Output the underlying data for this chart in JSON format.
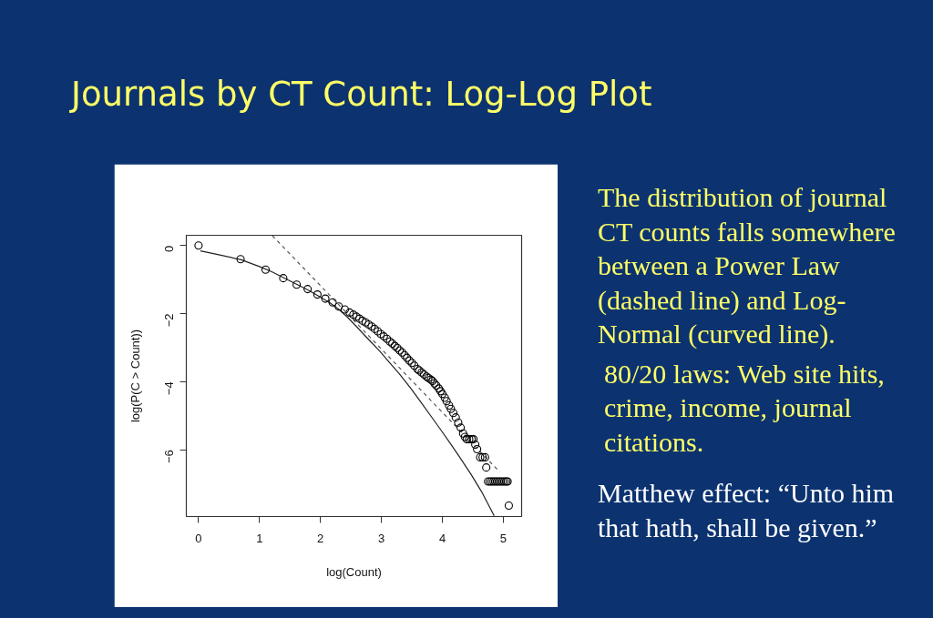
{
  "chart_data": {
    "type": "scatter",
    "title": "Journals by CT Count: Log-Log Plot",
    "xlabel": "log(Count)",
    "ylabel": "log(P(C > Count))",
    "annotations": [
      "The distribution of journal CT counts falls somewhere between a Power Law (dashed line) and Log-Normal (curved line).",
      "80/20 laws: Web site hits, crime, income, journal citations.",
      "Matthew effect: “Unto him that hath, shall be given.”"
    ],
    "xlim": [
      -0.2,
      5.3
    ],
    "ylim": [
      -7.96,
      0.3
    ],
    "xticks": [
      0,
      1,
      2,
      3,
      4,
      5
    ],
    "yticks": [
      0,
      -2,
      -4,
      -6
    ],
    "grid": false,
    "series": [
      {
        "type": "line",
        "color": "#555555",
        "line_style": "dashed",
        "x": [
          1.21,
          4.94
        ],
        "values": [
          0.29,
          -6.65
        ]
      },
      {
        "type": "line",
        "color": "#222222",
        "line_style": "solid",
        "x": [
          0.03,
          0.35,
          0.7,
          1.0,
          1.2,
          1.4,
          1.6,
          1.8,
          2.0,
          2.15,
          2.29,
          2.44,
          2.59,
          2.79,
          2.97,
          3.14,
          3.29,
          3.47,
          3.64,
          3.84,
          4.0,
          4.14,
          4.3,
          4.47,
          4.64,
          4.85
        ],
        "values": [
          -0.16,
          -0.28,
          -0.42,
          -0.62,
          -0.77,
          -0.95,
          -1.13,
          -1.31,
          -1.52,
          -1.68,
          -1.86,
          -2.1,
          -2.38,
          -2.76,
          -3.1,
          -3.45,
          -3.76,
          -4.17,
          -4.58,
          -5.08,
          -5.48,
          -5.84,
          -6.26,
          -6.72,
          -7.22,
          -7.94
        ]
      },
      {
        "color": "#000000",
        "marker": "circle",
        "x": [
          0,
          0.69,
          1.1,
          1.39,
          1.61,
          1.79,
          1.95,
          2.08,
          2.2,
          2.3,
          2.4,
          2.48,
          2.54,
          2.59,
          2.64,
          2.69,
          2.74,
          2.79,
          2.84,
          2.89,
          2.94,
          2.99,
          3.04,
          3.09,
          3.14,
          3.18,
          3.22,
          3.26,
          3.3,
          3.34,
          3.38,
          3.42,
          3.46,
          3.5,
          3.54,
          3.59,
          3.62,
          3.66,
          3.7,
          3.74,
          3.77,
          3.81,
          3.84,
          3.87,
          3.9,
          3.94,
          3.97,
          4.0,
          4.04,
          4.07,
          4.11,
          4.14,
          4.18,
          4.22,
          4.26,
          4.3,
          4.34,
          4.37,
          4.4,
          4.44,
          4.48,
          4.51,
          4.54,
          4.57,
          4.62,
          4.66,
          4.7,
          4.72,
          4.75,
          4.78,
          4.81,
          4.84,
          4.87,
          4.9,
          4.93,
          4.96,
          4.99,
          5.02,
          5.05,
          5.07,
          5.09
        ],
        "values": [
          0,
          -0.4,
          -0.71,
          -0.96,
          -1.15,
          -1.28,
          -1.44,
          -1.56,
          -1.67,
          -1.79,
          -1.88,
          -1.97,
          -2.03,
          -2.09,
          -2.15,
          -2.21,
          -2.26,
          -2.32,
          -2.38,
          -2.45,
          -2.52,
          -2.6,
          -2.67,
          -2.74,
          -2.82,
          -2.88,
          -2.95,
          -3.01,
          -3.08,
          -3.14,
          -3.22,
          -3.3,
          -3.38,
          -3.45,
          -3.53,
          -3.63,
          -3.67,
          -3.73,
          -3.79,
          -3.85,
          -3.89,
          -3.94,
          -3.98,
          -4.05,
          -4.11,
          -4.2,
          -4.28,
          -4.36,
          -4.47,
          -4.57,
          -4.7,
          -4.8,
          -4.92,
          -5.05,
          -5.2,
          -5.35,
          -5.52,
          -5.62,
          -5.69,
          -5.69,
          -5.69,
          -5.69,
          -5.85,
          -5.98,
          -6.22,
          -6.22,
          -6.22,
          -6.52,
          -6.93,
          -6.93,
          -6.93,
          -6.93,
          -6.93,
          -6.93,
          -6.93,
          -6.93,
          -6.93,
          -6.93,
          -6.93,
          -6.93,
          -7.64
        ]
      }
    ]
  }
}
